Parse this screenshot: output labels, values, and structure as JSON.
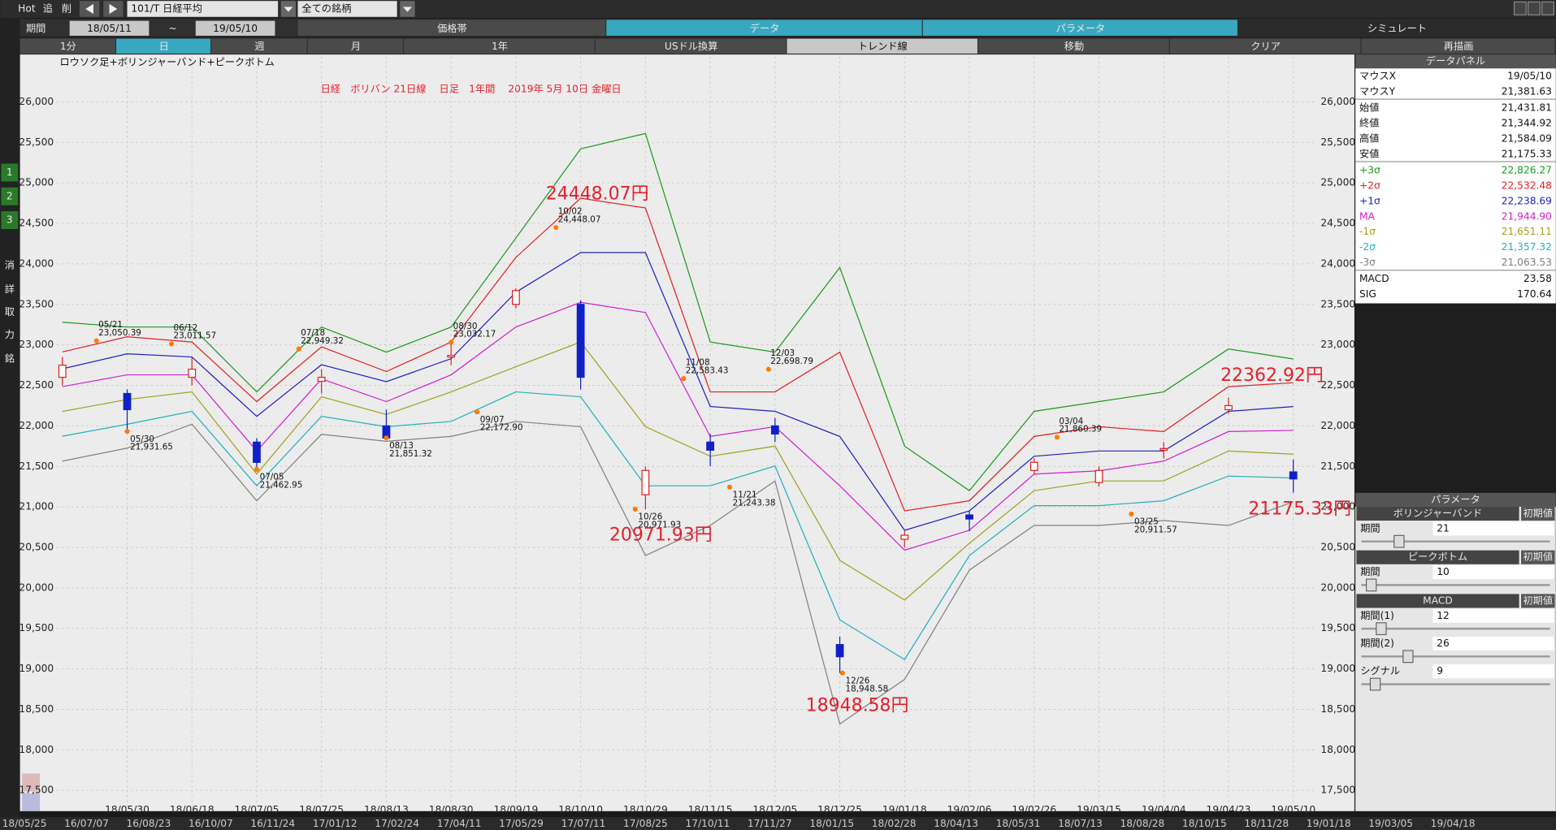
{
  "toolbar": {
    "hot": "Hot",
    "add": "追",
    "del": "削",
    "symbol": "101/T 日経平均",
    "universe": "全ての銘柄",
    "period_label": "期間",
    "from": "18/05/11",
    "tilde": "~",
    "to": "19/05/10",
    "tabs": [
      "価格帯",
      "データ",
      "パラメータ",
      "シミュレート"
    ],
    "buttons": [
      "1分",
      "日",
      "週",
      "月",
      "1年",
      "USドル換算",
      "トレンド線",
      "移動",
      "クリア",
      "再描画"
    ]
  },
  "sidebar": [
    "1",
    "2",
    "3",
    "消",
    "詳",
    "取",
    "力",
    "銘"
  ],
  "data_panel": {
    "title": "データパネル",
    "rows": [
      [
        "マウスX",
        "19/05/10"
      ],
      [
        "マウスY",
        "21,381.63"
      ],
      [
        "始値",
        "21,431.81"
      ],
      [
        "終値",
        "21,344.92"
      ],
      [
        "高値",
        "21,584.09"
      ],
      [
        "安値",
        "21,175.33"
      ],
      [
        "+3σ",
        "22,826.27"
      ],
      [
        "+2σ",
        "22,532.48"
      ],
      [
        "+1σ",
        "22,238.69"
      ],
      [
        "MA",
        "21,944.90"
      ],
      [
        "-1σ",
        "21,651.11"
      ],
      [
        "-2σ",
        "21,357.32"
      ],
      [
        "-3σ",
        "21,063.53"
      ],
      [
        "MACD",
        "23.58"
      ],
      [
        "SIG",
        "170.64"
      ]
    ]
  },
  "param_panel": {
    "title": "パラメータ",
    "sections": [
      {
        "title": "ボリンジャーバンド",
        "reset": "初期値",
        "fields": [
          {
            "label": "期間",
            "value": 21
          }
        ]
      },
      {
        "title": "ピークボトム",
        "reset": "初期値",
        "fields": [
          {
            "label": "期間",
            "value": 10
          }
        ]
      },
      {
        "title": "MACD",
        "reset": "初期値",
        "fields": [
          {
            "label": "期間(1)",
            "value": 12
          },
          {
            "label": "期間(2)",
            "value": 26
          },
          {
            "label": "シグナル",
            "value": 9
          }
        ]
      }
    ]
  },
  "navigator": {
    "dates": [
      "18/05/25",
      "16/07/07",
      "16/08/23",
      "16/10/07",
      "16/11/24",
      "17/01/12",
      "17/02/24",
      "17/04/11",
      "17/05/29",
      "17/07/11",
      "17/08/25",
      "17/10/11",
      "17/11/27",
      "18/01/15",
      "18/02/28",
      "18/04/13",
      "18/05/31",
      "18/07/13",
      "18/08/28",
      "18/10/15",
      "18/11/28",
      "19/01/18",
      "19/03/05",
      "19/04/18"
    ]
  },
  "chart_data": {
    "type": "candlestick",
    "title": "日経　ボリバン 21日線　 日足　1年間　 2019年 5月 10日 金曜日",
    "subtitle": "ロウソク足+ボリンジャーバンド+ピークボトム",
    "categories": [
      null,
      "18/05/30",
      "18/06/18",
      "18/07/05",
      "18/07/25",
      "18/08/13",
      "18/08/30",
      "18/09/19",
      "18/10/10",
      "18/10/29",
      "18/11/15",
      "18/12/05",
      "18/12/25",
      "19/01/18",
      "19/02/06",
      "19/02/26",
      "19/03/15",
      "19/04/04",
      "19/04/23",
      "19/05/10"
    ],
    "candles": {
      "up_color": "#e02020",
      "down_color": "#1020c8",
      "open": [
        22600,
        22400,
        22600,
        21800,
        22550,
        22000,
        22850,
        23500,
        23500,
        21150,
        21800,
        22000,
        19300,
        20600,
        20900,
        21450,
        21300,
        21700,
        22200,
        21431.81
      ],
      "high": [
        22850,
        22450,
        22850,
        21850,
        22700,
        22200,
        23032,
        23700,
        23550,
        21500,
        21900,
        22100,
        19400,
        20700,
        20950,
        21600,
        21500,
        21800,
        22350,
        21584.09
      ],
      "low": [
        22500,
        21930,
        22500,
        21460,
        22400,
        21850,
        22750,
        23450,
        22450,
        20970,
        21500,
        21800,
        18950,
        20500,
        20700,
        21400,
        21250,
        21600,
        22150,
        21175.33
      ],
      "close": [
        22750,
        22200,
        22700,
        21550,
        22600,
        21850,
        22870,
        23670,
        22600,
        21450,
        21700,
        21900,
        19150,
        20650,
        20850,
        21550,
        21450,
        21720,
        22250,
        21344.92
      ]
    },
    "series": [
      {
        "color": "#1a9a1a",
        "values": [
          23280,
          23220,
          23220,
          22420,
          23220,
          22910,
          23220,
          24320,
          25420,
          25610,
          23035,
          22910,
          23955,
          21750,
          21200,
          22180,
          22300,
          22420,
          22950,
          22826.27
        ]
      },
      {
        "color": "#e02020",
        "values": [
          22913,
          23100,
          23035,
          22300,
          22975,
          22670,
          23035,
          24080,
          24810,
          24690,
          22420,
          22420,
          22910,
          20950,
          21075,
          21870,
          21990,
          21930,
          22485,
          22532.48
        ]
      },
      {
        "color": "#2020c0",
        "values": [
          22705,
          22890,
          22850,
          22117,
          22755,
          22545,
          22830,
          23650,
          24140,
          24140,
          22240,
          22180,
          21870,
          20710,
          20950,
          21625,
          21690,
          21690,
          22180,
          22238.69
        ]
      },
      {
        "color": "#d020d0",
        "values": [
          22484,
          22630,
          22630,
          21690,
          22580,
          22300,
          22630,
          23220,
          23525,
          23400,
          21870,
          21990,
          21260,
          20465,
          20710,
          21405,
          21445,
          21565,
          21930,
          21944.9
        ]
      },
      {
        "color": "#a0a020",
        "values": [
          22178,
          22325,
          22420,
          21406,
          22360,
          22140,
          22420,
          22730,
          23035,
          21990,
          21625,
          21750,
          20340,
          19850,
          20550,
          21200,
          21320,
          21320,
          21690,
          21651.11
        ]
      },
      {
        "color": "#20b0c0",
        "values": [
          21872,
          22020,
          22180,
          21260,
          22117,
          21990,
          22055,
          22420,
          22360,
          21260,
          21260,
          21505,
          19605,
          19115,
          20400,
          21015,
          21015,
          21075,
          21380,
          21357.32
        ]
      },
      {
        "color": "#808080",
        "values": [
          21565,
          21725,
          22020,
          21075,
          21895,
          21810,
          21870,
          22055,
          21990,
          20400,
          20770,
          21320,
          18320,
          18870,
          20220,
          20770,
          20770,
          20830,
          20770,
          21063.53
        ]
      }
    ],
    "peaks": [
      {
        "date": "05/21",
        "value": {
          "value": 23050.39,
          "label": "23,050.39"
        }
      },
      {
        "date": "05/30",
        "value": {
          "value": 21931.65,
          "label": "21,931.65"
        }
      },
      {
        "date": "06/12",
        "value": {
          "value": 23011.57,
          "label": "23,011.57"
        }
      },
      {
        "date": "07/05",
        "value": {
          "value": 21462.95,
          "label": "21,462.95"
        }
      },
      {
        "date": "07/18",
        "value": {
          "value": 22949.32,
          "label": "22,949.32"
        }
      },
      {
        "date": "08/13",
        "value": {
          "value": 21851.32,
          "label": "21,851.32"
        }
      },
      {
        "date": "08/30",
        "value": {
          "value": 23032.17,
          "label": "23,032.17"
        }
      },
      {
        "date": "09/07",
        "value": {
          "value": 22172.9,
          "label": "22,172.90"
        }
      },
      {
        "date": "10/02",
        "value": {
          "value": 24448.07,
          "label": "24,448.07"
        }
      },
      {
        "date": "10/26",
        "value": {
          "value": 20971.93,
          "label": "20,971.93"
        }
      },
      {
        "date": "11/08",
        "value": {
          "value": 22583.43,
          "label": "22,583.43"
        }
      },
      {
        "date": "11/21",
        "value": {
          "value": 21243.38,
          "label": "21,243.38"
        }
      },
      {
        "date": "12/03",
        "value": {
          "value": 22698.79,
          "label": "22,698.79"
        }
      },
      {
        "date": "12/26",
        "value": {
          "value": 18948.58,
          "label": "18,948.58"
        }
      },
      {
        "date": "03/04",
        "value": {
          "value": 21860.39,
          "label": "21,860.39"
        }
      },
      {
        "date": "03/25",
        "value": {
          "value": 20911.57,
          "label": "20,911.57"
        }
      }
    ],
    "callouts": [
      "24448.07円",
      "20971.93円",
      "18948.58円",
      "22362.92円",
      "21175.33円"
    ],
    "ylim": [
      17280,
      26560
    ],
    "yticks": [
      {
        "value": 17500,
        "label": "17,500"
      },
      {
        "value": 18000,
        "label": "18,000"
      },
      {
        "value": 18500,
        "label": "18,500"
      },
      {
        "value": 19000,
        "label": "19,000"
      },
      {
        "value": 19500,
        "label": "19,500"
      },
      {
        "value": 20000,
        "label": "20,000"
      },
      {
        "value": 20500,
        "label": "20,500"
      },
      {
        "value": 21000,
        "label": "21,000"
      },
      {
        "value": 21500,
        "label": "21,500"
      },
      {
        "value": 22000,
        "label": "22,000"
      },
      {
        "value": 22500,
        "label": "22,500"
      },
      {
        "value": 23000,
        "label": "23,000"
      },
      {
        "value": 23500,
        "label": "23,500"
      },
      {
        "value": 24000,
        "label": "24,000"
      },
      {
        "value": 24500,
        "label": "24,500"
      },
      {
        "value": 25000,
        "label": "25,000"
      },
      {
        "value": 25500,
        "label": "25,500"
      },
      {
        "value": 26000,
        "label": "26,000"
      }
    ],
    "grid": true
  }
}
